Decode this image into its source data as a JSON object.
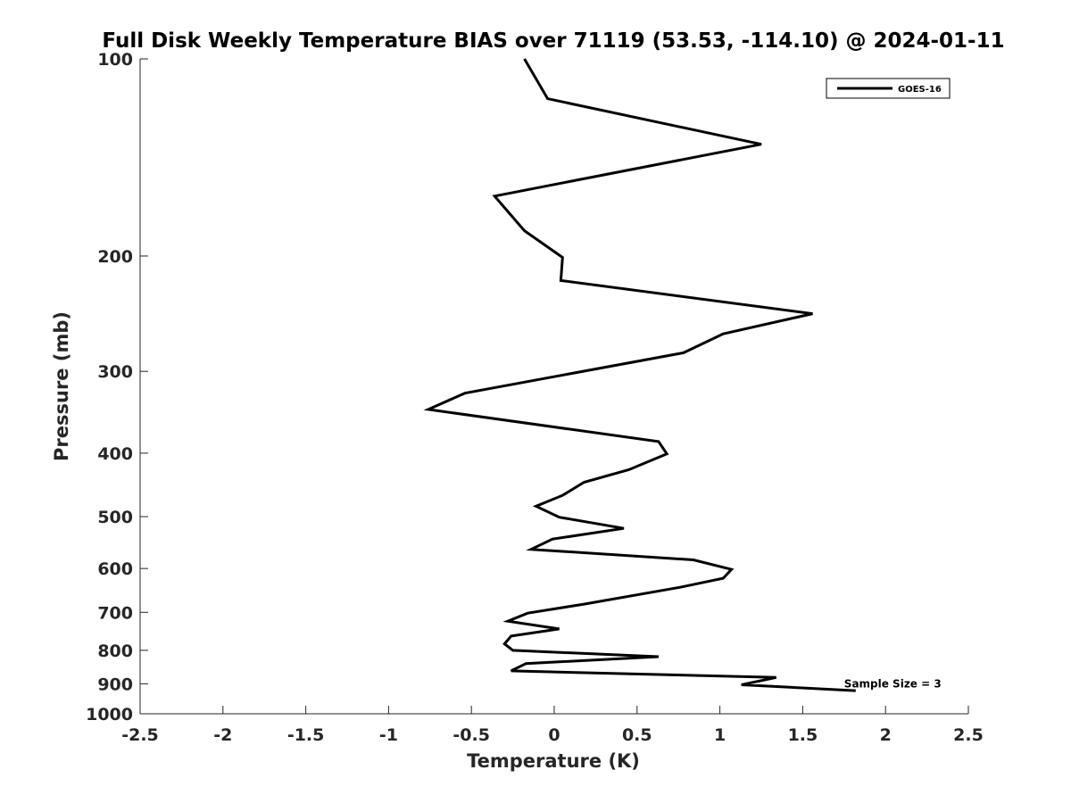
{
  "chart_data": {
    "type": "line",
    "title": "Full Disk Weekly Temperature BIAS over 71119 (53.53, -114.10) @ 2024-01-11",
    "xlabel": "Temperature (K)",
    "ylabel": "Pressure (mb)",
    "xlim": [
      -2.5,
      2.5
    ],
    "ylim": [
      100,
      1000
    ],
    "y_scale": "log",
    "y_reversed": true,
    "x_ticks": [
      "-2.5",
      "-2",
      "-1.5",
      "-1",
      "-0.5",
      "0",
      "0.5",
      "1",
      "1.5",
      "2",
      "2.5"
    ],
    "y_ticks": [
      "100",
      "200",
      "300",
      "400",
      "500",
      "600",
      "700",
      "800",
      "900",
      "1000"
    ],
    "grid": false,
    "legend_position": "top-right",
    "series": [
      {
        "name": "GOES-16",
        "color": "#000000",
        "points": [
          {
            "x": -0.18,
            "p": 100
          },
          {
            "x": -0.04,
            "p": 115
          },
          {
            "x": 1.25,
            "p": 135
          },
          {
            "x": -0.36,
            "p": 162
          },
          {
            "x": -0.18,
            "p": 183
          },
          {
            "x": 0.05,
            "p": 201
          },
          {
            "x": 0.04,
            "p": 218
          },
          {
            "x": 1.56,
            "p": 245
          },
          {
            "x": 1.02,
            "p": 263
          },
          {
            "x": 0.78,
            "p": 281
          },
          {
            "x": -0.54,
            "p": 324
          },
          {
            "x": -0.76,
            "p": 343
          },
          {
            "x": 0.63,
            "p": 384
          },
          {
            "x": 0.68,
            "p": 401
          },
          {
            "x": 0.45,
            "p": 424
          },
          {
            "x": 0.18,
            "p": 443
          },
          {
            "x": 0.05,
            "p": 464
          },
          {
            "x": -0.11,
            "p": 482
          },
          {
            "x": 0.03,
            "p": 501
          },
          {
            "x": 0.42,
            "p": 521
          },
          {
            "x": -0.01,
            "p": 541
          },
          {
            "x": -0.14,
            "p": 561
          },
          {
            "x": 0.84,
            "p": 582
          },
          {
            "x": 1.07,
            "p": 602
          },
          {
            "x": 1.02,
            "p": 621
          },
          {
            "x": 0.76,
            "p": 641
          },
          {
            "x": 0.18,
            "p": 680
          },
          {
            "x": -0.16,
            "p": 702
          },
          {
            "x": -0.28,
            "p": 722
          },
          {
            "x": 0.03,
            "p": 742
          },
          {
            "x": -0.26,
            "p": 761
          },
          {
            "x": -0.3,
            "p": 782
          },
          {
            "x": -0.25,
            "p": 800
          },
          {
            "x": 0.63,
            "p": 818
          },
          {
            "x": -0.17,
            "p": 838
          },
          {
            "x": -0.26,
            "p": 860
          },
          {
            "x": 1.34,
            "p": 880
          },
          {
            "x": 1.13,
            "p": 903
          },
          {
            "x": 1.82,
            "p": 922
          }
        ]
      }
    ],
    "annotations": [
      {
        "text": "Sample Size = 3",
        "x": 1.75,
        "p": 900
      }
    ]
  }
}
